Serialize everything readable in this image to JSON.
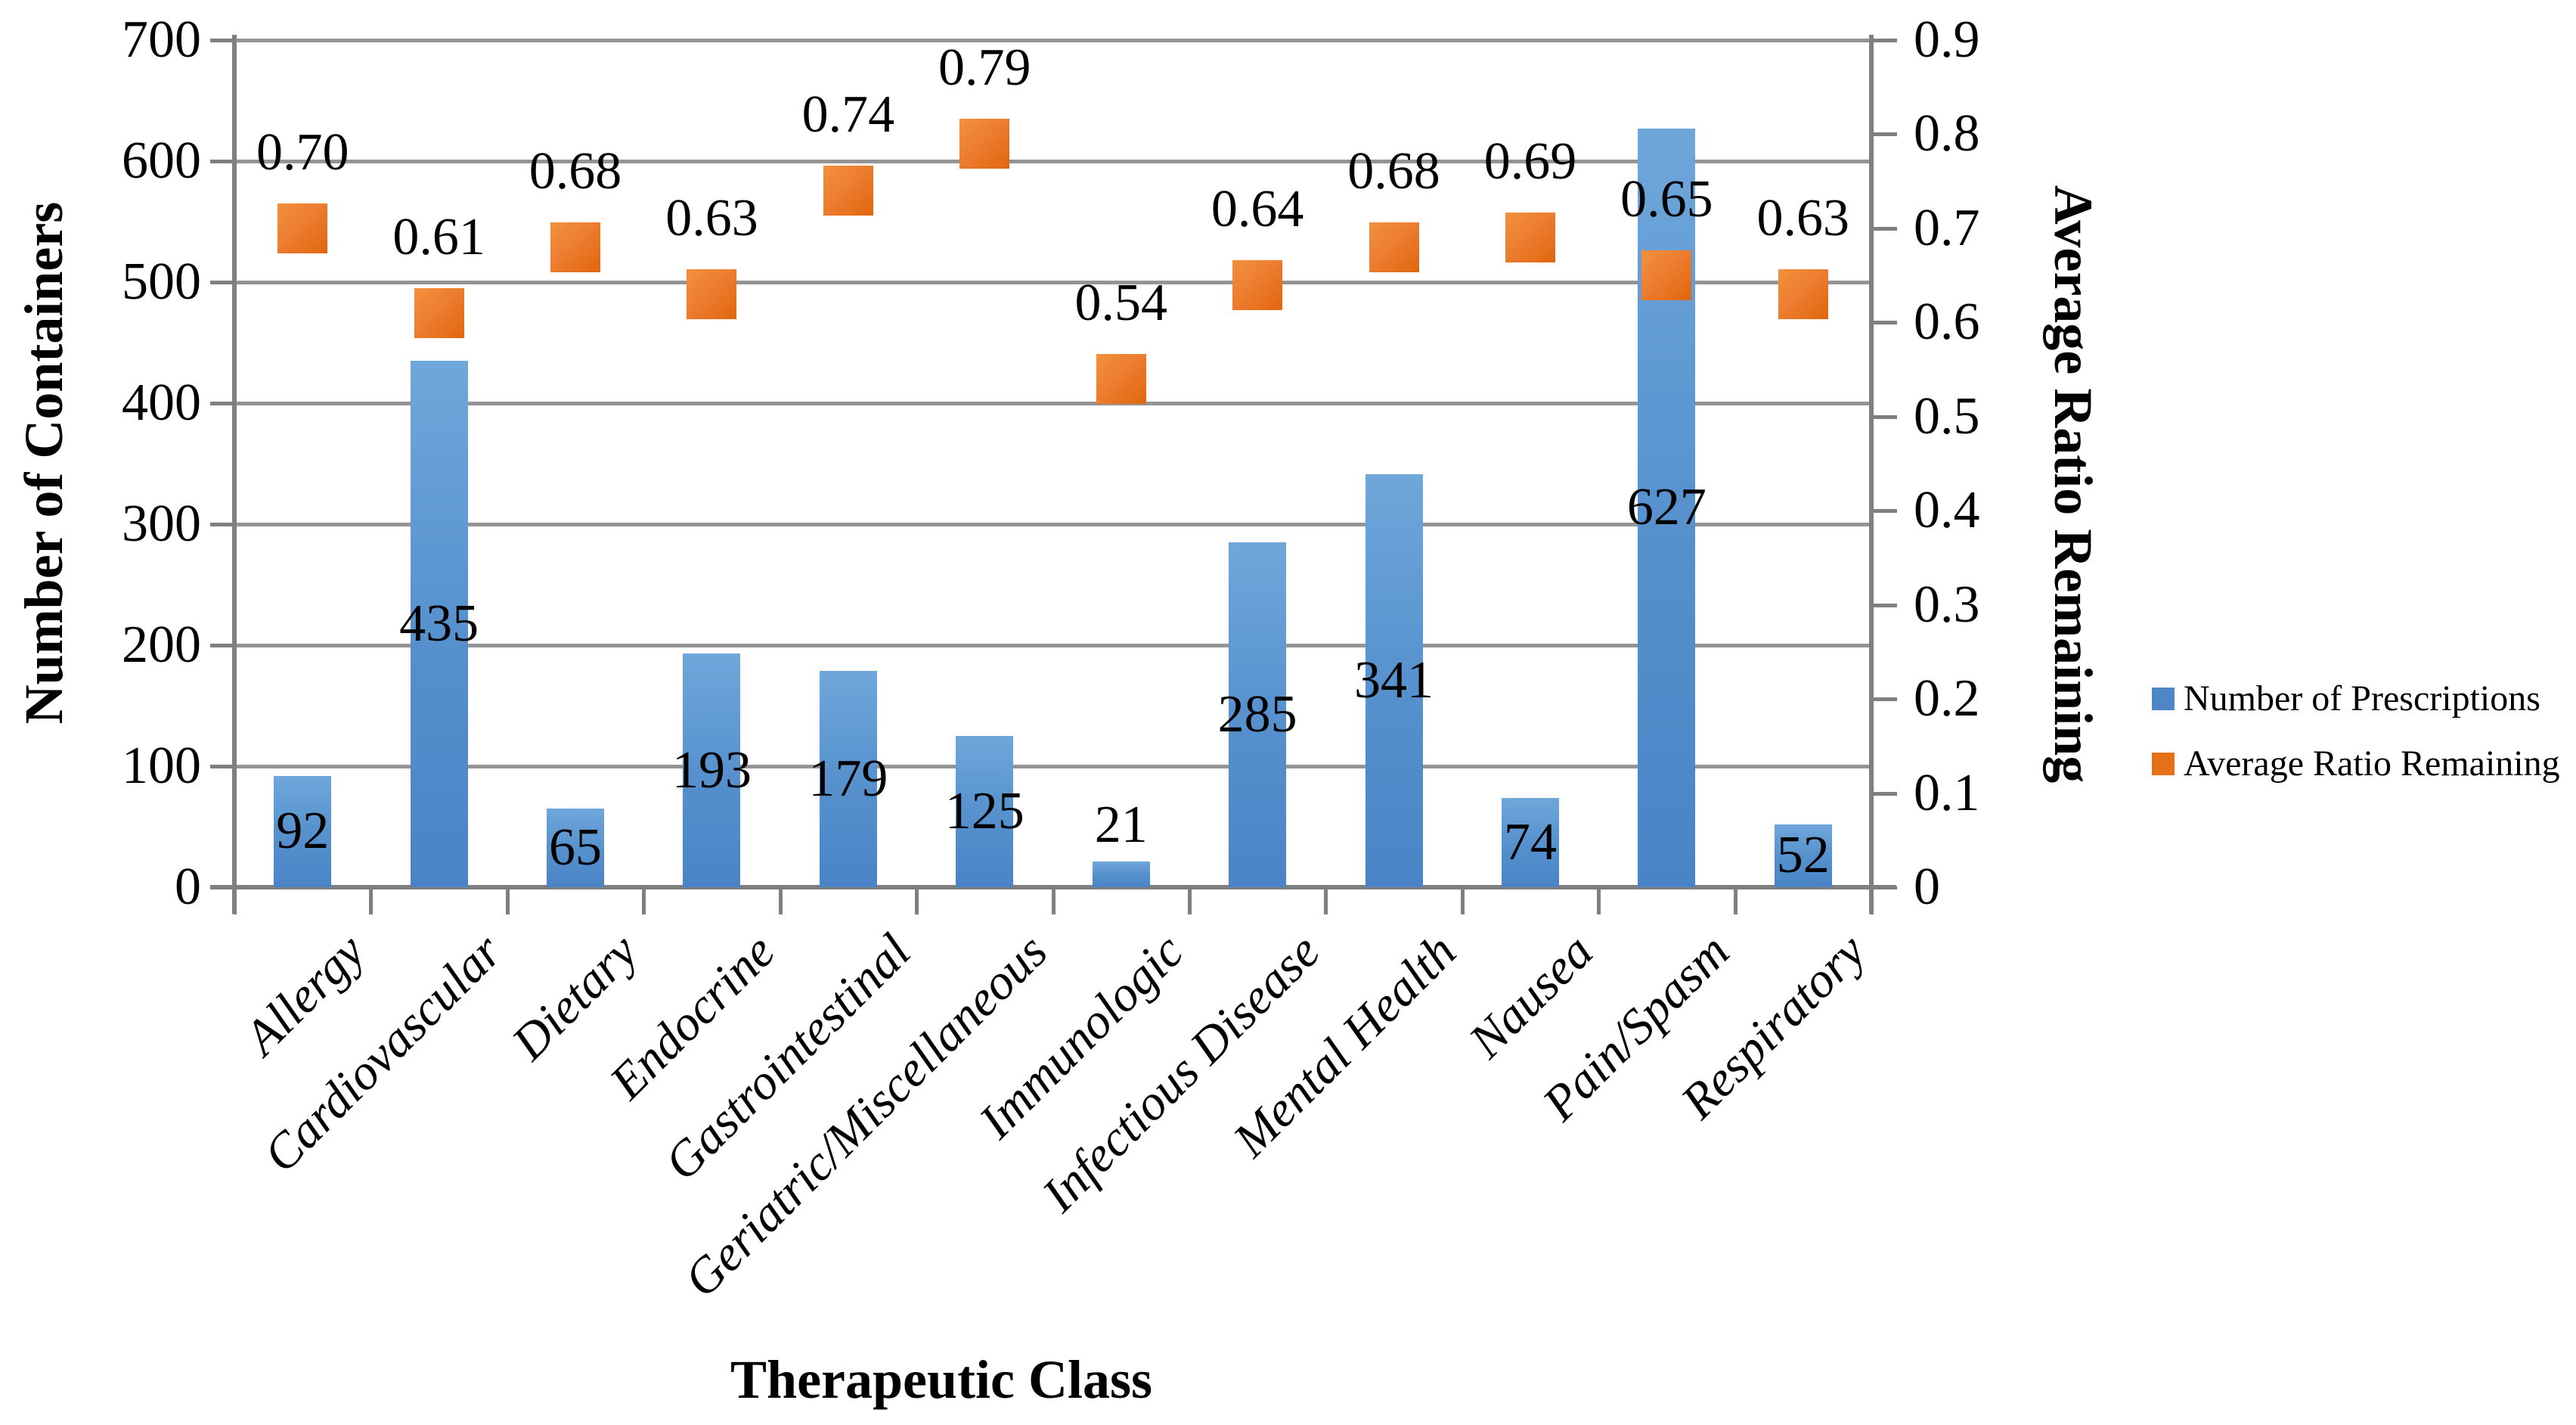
{
  "chart_data": {
    "type": "bar",
    "subtype": "combo-bar-with-square-scatter-dual-axis",
    "categories": [
      "Allergy",
      "Cardiovascular",
      "Dietary",
      "Endocrine",
      "Gastrointestinal",
      "Geriatric/Miscellaneous",
      "Immunologic",
      "Infectious Disease",
      "Mental Health",
      "Nausea",
      "Pain/Spasm",
      "Respiratory"
    ],
    "series": [
      {
        "name": "Number of Prescriptions",
        "type": "bar",
        "axis": "left",
        "values": [
          92,
          435,
          65,
          193,
          179,
          125,
          21,
          285,
          341,
          74,
          627,
          52
        ],
        "labels": [
          "92",
          "435",
          "65",
          "193",
          "179",
          "125",
          "21",
          "285",
          "341",
          "74",
          "627",
          "52"
        ]
      },
      {
        "name": "Average Ratio Remaining",
        "type": "scatter-square",
        "axis": "right",
        "values": [
          0.7,
          0.61,
          0.68,
          0.63,
          0.74,
          0.79,
          0.54,
          0.64,
          0.68,
          0.69,
          0.65,
          0.63
        ],
        "labels": [
          "0.70",
          "0.61",
          "0.68",
          "0.63",
          "0.74",
          "0.79",
          "0.54",
          "0.64",
          "0.68",
          "0.69",
          "0.65",
          "0.63"
        ]
      }
    ],
    "left_axis": {
      "title": "Number of Containers",
      "min": 0,
      "max": 700,
      "step": 100
    },
    "right_axis": {
      "title": "Average Ratio Remaining",
      "min": 0,
      "max": 0.9,
      "step": 0.1
    },
    "x_axis": {
      "title": "Therapeutic Class"
    },
    "legend": {
      "position": "right",
      "entries": [
        "Number of Prescriptions",
        "Average Ratio Remaining"
      ]
    },
    "grid": "horizontal-on",
    "colors": {
      "bar": "#5590CD",
      "bar_gradient_top": "#6FA7DB",
      "bar_gradient_bottom": "#4A84C6",
      "marker": "#ED7D31",
      "marker_dark": "#E0660C",
      "legend_bar_swatch": "#4E86C8",
      "legend_marker_swatch": "#E67017",
      "gridline": "#949494",
      "axis_line": "#7F7F7F",
      "text": "#000000",
      "background": "#FFFFFF"
    }
  }
}
